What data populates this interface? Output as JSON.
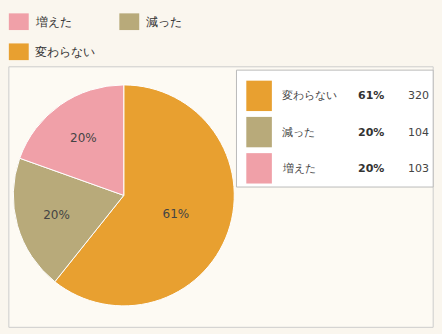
{
  "chart_data": {
    "type": "pie",
    "categories": [
      "変わらない",
      "減った",
      "増えた"
    ],
    "values": [
      320,
      104,
      103
    ],
    "pct_labels": [
      "61%",
      "20%",
      "20%"
    ],
    "colors": [
      "#E8A030",
      "#B8AA7A",
      "#F0A0A8"
    ],
    "top_legend": [
      "増えた",
      "減った",
      "変わらない"
    ]
  }
}
